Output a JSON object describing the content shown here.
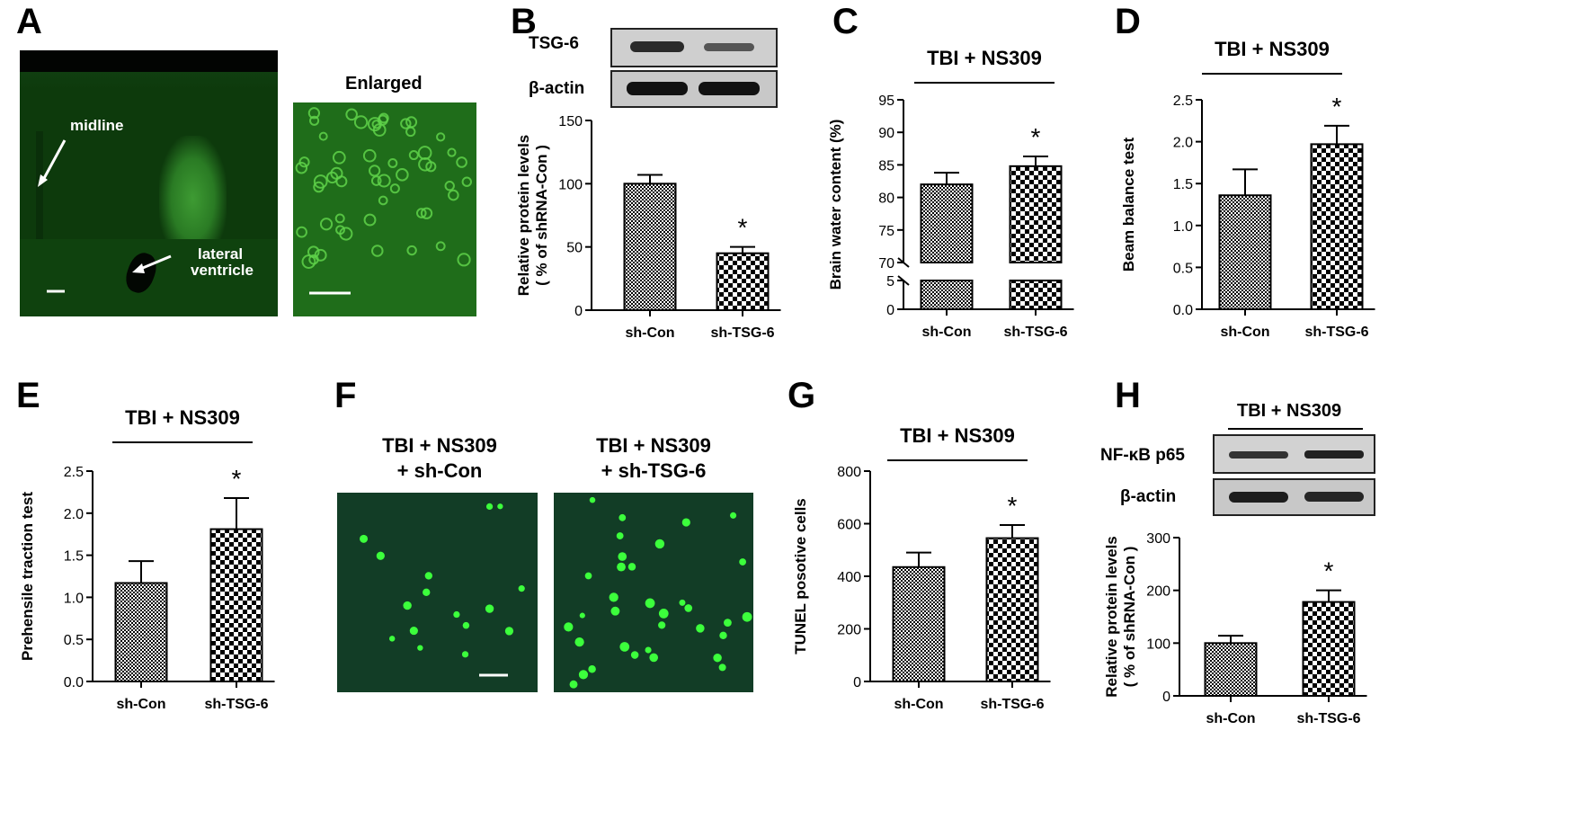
{
  "panels": {
    "A": {
      "letter": "A",
      "labels": {
        "midline": "midline",
        "lateral": "lateral",
        "ventricle": "ventricle",
        "enlarged": "Enlarged"
      }
    },
    "B": {
      "letter": "B",
      "blot": {
        "row1": "TSG-6",
        "row2": "β-actin"
      }
    },
    "C": {
      "letter": "C"
    },
    "D": {
      "letter": "D"
    },
    "E": {
      "letter": "E"
    },
    "F": {
      "letter": "F",
      "labels": {
        "left_l1": "TBI + NS309",
        "left_l2": "+ sh-Con",
        "right_l1": "TBI + NS309",
        "right_l2": "+ sh-TSG-6"
      }
    },
    "G": {
      "letter": "G"
    },
    "H": {
      "letter": "H",
      "blot": {
        "header": "TBI + NS309",
        "row1": "NF-κB p65",
        "row2": "β-actin"
      }
    }
  },
  "chart_data": [
    {
      "panel": "B",
      "type": "bar",
      "categories": [
        "sh-Con",
        "sh-TSG-6"
      ],
      "values": [
        100,
        45
      ],
      "errors": [
        7,
        5
      ],
      "ylabel": "Relative protein levels\n( % of shRNA-Con )",
      "header": "",
      "ylim": [
        0,
        150
      ],
      "yticks": [
        "0",
        "50",
        "100",
        "150"
      ],
      "significance": [
        false,
        true
      ]
    },
    {
      "panel": "C",
      "type": "bar",
      "categories": [
        "sh-Con",
        "sh-TSG-6"
      ],
      "values": [
        82,
        84.8
      ],
      "errors": [
        1.8,
        1.5
      ],
      "ylabel": "Brain water content (%)",
      "header": "TBI + NS309",
      "ylim": [
        0,
        95
      ],
      "broken_axis": {
        "lower": [
          0,
          5
        ],
        "upper": [
          70,
          95
        ]
      },
      "yticks": [
        "0",
        "5",
        "70",
        "75",
        "80",
        "85",
        "90",
        "95"
      ],
      "significance": [
        false,
        true
      ]
    },
    {
      "panel": "D",
      "type": "bar",
      "categories": [
        "sh-Con",
        "sh-TSG-6"
      ],
      "values": [
        1.36,
        1.97
      ],
      "errors": [
        0.31,
        0.22
      ],
      "ylabel": "Beam balance test",
      "header": "TBI + NS309",
      "ylim": [
        0,
        2.5
      ],
      "yticks": [
        "0.0",
        "0.5",
        "1.0",
        "1.5",
        "2.0",
        "2.5"
      ],
      "significance": [
        false,
        true
      ]
    },
    {
      "panel": "E",
      "type": "bar",
      "categories": [
        "sh-Con",
        "sh-TSG-6"
      ],
      "values": [
        1.17,
        1.81
      ],
      "errors": [
        0.26,
        0.37
      ],
      "ylabel": "Prehensile traction test",
      "header": "TBI + NS309",
      "ylim": [
        0,
        2.5
      ],
      "yticks": [
        "0.0",
        "0.5",
        "1.0",
        "1.5",
        "2.0",
        "2.5"
      ],
      "significance": [
        false,
        true
      ]
    },
    {
      "panel": "G",
      "type": "bar",
      "categories": [
        "sh-Con",
        "sh-TSG-6"
      ],
      "values": [
        435,
        545
      ],
      "errors": [
        55,
        50
      ],
      "ylabel": "TUNEL posotive cells",
      "header": "TBI + NS309",
      "ylim": [
        0,
        800
      ],
      "yticks": [
        "0",
        "200",
        "400",
        "600",
        "800"
      ],
      "significance": [
        false,
        true
      ]
    },
    {
      "panel": "H",
      "type": "bar",
      "categories": [
        "sh-Con",
        "sh-TSG-6"
      ],
      "values": [
        100,
        178
      ],
      "errors": [
        14,
        22
      ],
      "ylabel": "Relative protein levels\n( % of shRNA-Con )",
      "header": "",
      "ylim": [
        0,
        300
      ],
      "yticks": [
        "0",
        "100",
        "200",
        "300"
      ],
      "significance": [
        false,
        true
      ]
    }
  ],
  "significance_mark": "*"
}
